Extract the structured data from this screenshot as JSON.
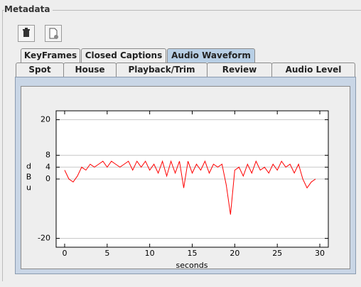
{
  "panel": {
    "title": "Metadata"
  },
  "tabs": {
    "row1": [
      "KeyFrames",
      "Closed Captions",
      "Audio Waveform"
    ],
    "row2": [
      "Spot",
      "House",
      "Playback/Trim",
      "Review",
      "Audio Level"
    ]
  },
  "chart_data": {
    "type": "line",
    "x_label": "seconds",
    "y_label": "dBu",
    "color": "#ff0000",
    "x": [
      0,
      0.5,
      1,
      1.5,
      2,
      2.5,
      3,
      3.5,
      4,
      4.5,
      5,
      5.5,
      6,
      6.5,
      7,
      7.5,
      8,
      8.5,
      9,
      9.5,
      10,
      10.5,
      11,
      11.5,
      12,
      12.5,
      13,
      13.5,
      14,
      14.5,
      15,
      15.5,
      16,
      16.5,
      17,
      17.5,
      18,
      18.5,
      19,
      19.5,
      20,
      20.5,
      21,
      21.5,
      22,
      22.5,
      23,
      23.5,
      24,
      24.5,
      25,
      25.5,
      26,
      26.5,
      27,
      27.5,
      28,
      28.5,
      29,
      29.5
    ],
    "values": [
      3,
      0,
      -1,
      1,
      4,
      3,
      5,
      4,
      5,
      6,
      4,
      6,
      5,
      4,
      5,
      6,
      3,
      6,
      4,
      6,
      3,
      5,
      2,
      6,
      1,
      6,
      2,
      6,
      -3,
      6,
      2,
      5,
      3,
      6,
      2,
      5,
      4,
      5,
      -2,
      -12,
      3,
      4,
      1,
      5,
      2,
      6,
      3,
      4,
      2,
      5,
      3,
      6,
      4,
      5,
      2,
      5,
      0,
      -3,
      -1,
      0
    ],
    "xlim": [
      -1,
      31
    ],
    "xticks": [
      0,
      5,
      10,
      15,
      20,
      25,
      30
    ],
    "ylim": [
      -23,
      23
    ],
    "yticks": [
      -20,
      0,
      4,
      8,
      20
    ],
    "grid": true
  }
}
